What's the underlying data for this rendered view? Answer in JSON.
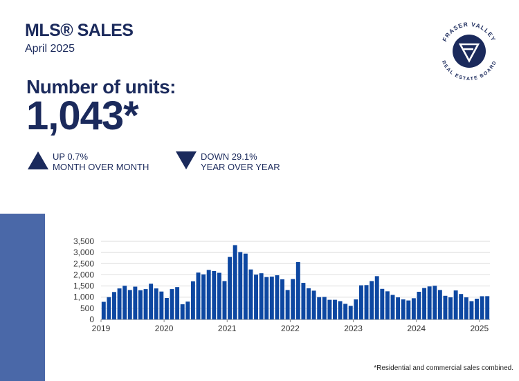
{
  "header": {
    "title": "MLS® SALES",
    "subtitle": "April 2025"
  },
  "metric": {
    "label": "Number of units:",
    "value": "1,043*"
  },
  "changes": {
    "mom_line1": "UP 0.7%",
    "mom_line2": "MONTH OVER MONTH",
    "yoy_line1": "DOWN 29.1%",
    "yoy_line2": "YEAR OVER YEAR"
  },
  "logo": {
    "text_top": "FRASER VALLEY",
    "text_bottom": "REAL ESTATE BOARD",
    "icon": "fvreb-monogram-icon"
  },
  "footnote": "*Residential and commercial sales combined.",
  "colors": {
    "brand": "#1b2a5c",
    "bar": "#0d47a1",
    "side_bar": "#4a68a8"
  },
  "chart_data": {
    "type": "bar",
    "title": "",
    "xlabel": "",
    "ylabel": "",
    "ylim": [
      0,
      3500
    ],
    "y_ticks": [
      "0",
      "500",
      "1,000",
      "1,500",
      "2,000",
      "2,500",
      "3,000",
      "3,500"
    ],
    "x_tick_labels": [
      "2019",
      "2020",
      "2021",
      "2022",
      "2023",
      "2024",
      "2025"
    ],
    "grid": true,
    "values": [
      790,
      1000,
      1230,
      1390,
      1510,
      1320,
      1470,
      1310,
      1360,
      1600,
      1390,
      1250,
      960,
      1360,
      1450,
      680,
      800,
      1710,
      2100,
      2020,
      2220,
      2170,
      2090,
      1720,
      2800,
      3330,
      3020,
      2950,
      2240,
      2010,
      2070,
      1900,
      1920,
      1980,
      1800,
      1320,
      1810,
      2570,
      1640,
      1400,
      1290,
      1000,
      1010,
      880,
      880,
      820,
      700,
      610,
      900,
      1530,
      1540,
      1720,
      1940,
      1370,
      1260,
      1100,
      990,
      900,
      850,
      950,
      1240,
      1410,
      1480,
      1510,
      1320,
      1060,
      990,
      1300,
      1140,
      990,
      820,
      930,
      1040,
      1043
    ]
  }
}
